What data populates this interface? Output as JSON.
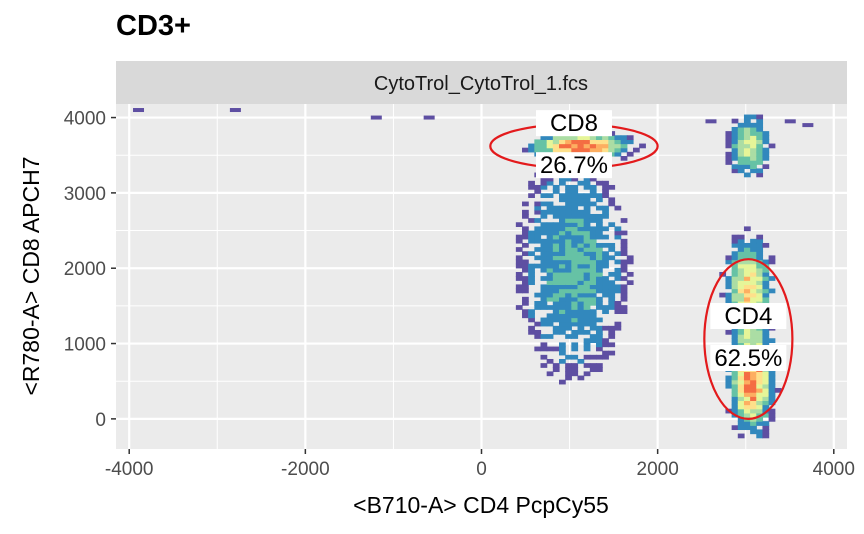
{
  "title": "CD3+",
  "chart_data": {
    "type": "heatmap",
    "title": "CD3+",
    "panel": "CytoTrol_CytoTrol_1.fcs",
    "xlabel": "<B710-A> CD4 PcpCy55",
    "ylabel": "<R780-A> CD8 APCH7",
    "xlim": [
      -4150,
      4150
    ],
    "ylim": [
      -400,
      4180
    ],
    "xticks": [
      -4000,
      -2000,
      0,
      2000,
      4000
    ],
    "xtick_labels": [
      "-4000",
      "-2000",
      "0",
      "2000",
      "4000"
    ],
    "yticks": [
      0,
      1000,
      2000,
      3000,
      4000
    ],
    "ytick_labels": [
      "0",
      "1000",
      "2000",
      "3000",
      "4000"
    ],
    "grid": true,
    "palette": [
      "#5e4fa2",
      "#3288bd",
      "#66c2a5",
      "#abdda4",
      "#e6f598",
      "#fee08b",
      "#fdae61",
      "#f46d43"
    ],
    "gates": [
      {
        "name": "CD8",
        "percent": "26.7%",
        "center": [
          1050,
          3620
        ],
        "semi_axes": [
          950,
          290
        ],
        "color": "#e31a1c"
      },
      {
        "name": "CD4",
        "percent": "62.5%",
        "center": [
          3030,
          1060
        ],
        "semi_axes": [
          500,
          1060
        ],
        "color": "#e31a1c"
      }
    ],
    "density_clusters": [
      {
        "center": [
          1100,
          3600
        ],
        "spread": [
          300,
          90
        ],
        "weight": 1.0
      },
      {
        "center": [
          3030,
          500
        ],
        "spread": [
          130,
          380
        ],
        "weight": 1.0
      },
      {
        "center": [
          3000,
          1700
        ],
        "spread": [
          140,
          380
        ],
        "weight": 0.75
      },
      {
        "center": [
          3000,
          3600
        ],
        "spread": [
          130,
          220
        ],
        "weight": 0.6
      },
      {
        "center": [
          1000,
          2000
        ],
        "spread": [
          380,
          900
        ],
        "weight": 0.3
      }
    ],
    "sparse_events": [
      [
        -3900,
        4100
      ],
      [
        -2800,
        4100
      ],
      [
        -1200,
        4000
      ],
      [
        -600,
        4000
      ],
      [
        2600,
        3950
      ],
      [
        3500,
        3950
      ],
      [
        3700,
        3900
      ]
    ]
  }
}
